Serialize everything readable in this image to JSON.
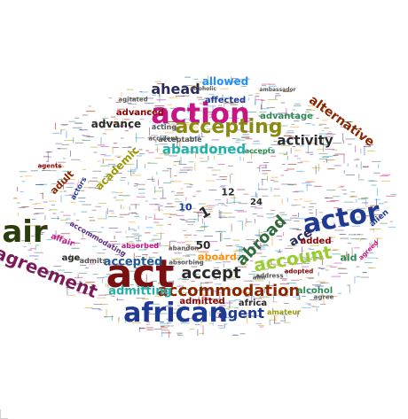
{
  "cloud": {
    "palette": [
      "#1f3a93",
      "#8b0000",
      "#2e8b57",
      "#9a9a00",
      "#5a2d82",
      "#c71585",
      "#1e90ff",
      "#ff8c00",
      "#555555",
      "#008b8b"
    ],
    "words": [
      {
        "text": "air",
        "color": "#2a3d0a"
      },
      {
        "text": "act",
        "color": "#7b1010"
      },
      {
        "text": "african",
        "color": "#1f3a93"
      },
      {
        "text": "action",
        "color": "#c71585"
      },
      {
        "text": "actor",
        "color": "#1f3a93"
      },
      {
        "text": "agreement",
        "color": "#7b1a5a"
      },
      {
        "text": "accepting",
        "color": "#8a8a10"
      },
      {
        "text": "accommodation",
        "color": "#8b2500"
      },
      {
        "text": "account",
        "color": "#9acd32"
      },
      {
        "text": "abroad",
        "color": "#2e6b3a"
      },
      {
        "text": "ahead",
        "color": "#2a2a5a"
      },
      {
        "text": "accept",
        "color": "#2a2a2a"
      },
      {
        "text": "abandoned",
        "color": "#20b2aa"
      },
      {
        "text": "activity",
        "color": "#2a2a2a"
      },
      {
        "text": "agent",
        "color": "#1f3a93"
      },
      {
        "text": "accepted",
        "color": "#1f5a93"
      },
      {
        "text": "admitting",
        "color": "#20b2aa"
      },
      {
        "text": "alternative",
        "color": "#8b2500"
      },
      {
        "text": "academic",
        "color": "#9a9a00"
      },
      {
        "text": "allowed",
        "color": "#1e90ff"
      },
      {
        "text": "advance",
        "color": "#2a2a2a"
      },
      {
        "text": "advanced",
        "color": "#8b0000"
      },
      {
        "text": "affected",
        "color": "#1f3a93"
      },
      {
        "text": "advantage",
        "color": "#2e8b57"
      },
      {
        "text": "ace",
        "color": "#2a2a5a"
      },
      {
        "text": "aboard",
        "color": "#ff8c00"
      },
      {
        "text": "africa",
        "color": "#2a2a2a"
      },
      {
        "text": "admitted",
        "color": "#8b0000"
      },
      {
        "text": "alcohol",
        "color": "#2e8b57"
      },
      {
        "text": "aid",
        "color": "#2e8b57"
      },
      {
        "text": "adult",
        "color": "#8b2500"
      },
      {
        "text": "added",
        "color": "#8b0000"
      },
      {
        "text": "accommodating",
        "color": "#5a2d82"
      },
      {
        "text": "absorbed",
        "color": "#c71585"
      },
      {
        "text": "alien",
        "color": "#1f3a93"
      },
      {
        "text": "actors",
        "color": "#1f3a93"
      },
      {
        "text": "affair",
        "color": "#c71585"
      },
      {
        "text": "age",
        "color": "#2a2a2a"
      },
      {
        "text": "admits",
        "color": "#555555"
      },
      {
        "text": "acting",
        "color": "#555555"
      },
      {
        "text": "acceptable",
        "color": "#555555"
      },
      {
        "text": "accepts",
        "color": "#2e8b57"
      },
      {
        "text": "ambassador",
        "color": "#555555"
      },
      {
        "text": "alcoholic",
        "color": "#555555"
      },
      {
        "text": "amateur",
        "color": "#9a9a00"
      },
      {
        "text": "50",
        "color": "#2a2a2a"
      },
      {
        "text": "10",
        "color": "#1f3a93"
      },
      {
        "text": "12",
        "color": "#2a2a2a"
      },
      {
        "text": "24",
        "color": "#2a2a2a"
      },
      {
        "text": "1",
        "color": "#2a2a2a"
      },
      {
        "text": "address",
        "color": "#555555"
      },
      {
        "text": "adopted",
        "color": "#8b0000"
      },
      {
        "text": "aim",
        "color": "#555555"
      },
      {
        "text": "agreed",
        "color": "#c71585"
      },
      {
        "text": "agree",
        "color": "#555555"
      },
      {
        "text": "accident",
        "color": "#555555"
      },
      {
        "text": "absorbing",
        "color": "#555555"
      },
      {
        "text": "abandon",
        "color": "#555555"
      },
      {
        "text": "agents",
        "color": "#8b0000"
      },
      {
        "text": "agitated",
        "color": "#555555"
      }
    ]
  }
}
